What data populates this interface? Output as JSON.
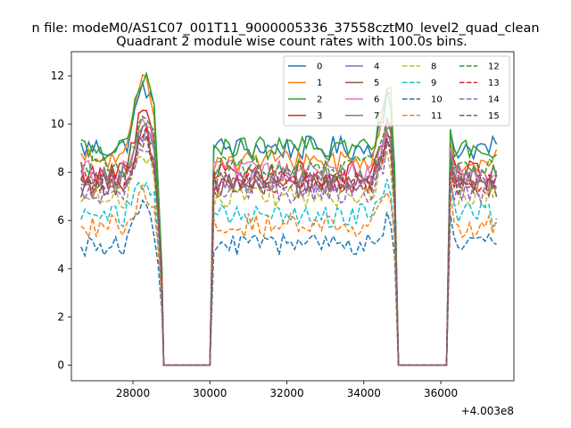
{
  "chart_data": {
    "type": "line",
    "suptitle": "n file: modeM0/AS1C07_001T11_9000005336_37558cztM0_level2_quad_clean",
    "title": "Quadrant 2 module wise count rates with 100.0s bins.",
    "xlabel": "",
    "ylabel": "",
    "x_offset_label": "+4.003e8",
    "x_offset": 400300000,
    "xlim": [
      26400,
      37900
    ],
    "ylim": [
      -0.65,
      13.0
    ],
    "x_ticks": [
      28000,
      30000,
      32000,
      34000,
      36000
    ],
    "x_tick_labels": [
      "28000",
      "30000",
      "32000",
      "34000",
      "36000"
    ],
    "y_ticks": [
      0,
      2,
      4,
      6,
      8,
      10,
      12
    ],
    "y_tick_labels": [
      "0",
      "2",
      "4",
      "6",
      "8",
      "10",
      "12"
    ],
    "grid": false,
    "legend_position": "top-right",
    "legend_columns": 4,
    "bin_seconds": 100,
    "segments": [
      {
        "x_start": 26650,
        "x_end": 28750,
        "drop_to": 28800
      },
      {
        "rise_from": 30000,
        "x_start": 30100,
        "x_end": 34850,
        "drop_to": 34900
      },
      {
        "rise_from": 36150,
        "x_start": 36250,
        "x_end": 37450
      }
    ],
    "gap_ranges": [
      [
        28800,
        30000
      ],
      [
        34900,
        36150
      ]
    ],
    "gap_value": 0,
    "series": [
      {
        "name": "0",
        "color": "#1f77b4",
        "dash": "solid",
        "level": 9.0,
        "peak1": 11.8,
        "peak2": 11.3
      },
      {
        "name": "1",
        "color": "#ff7f0e",
        "dash": "solid",
        "level": 8.5,
        "peak1": 12.4,
        "peak2": 11.5
      },
      {
        "name": "2",
        "color": "#2ca02c",
        "dash": "solid",
        "level": 9.0,
        "peak1": 12.1,
        "peak2": 11.4
      },
      {
        "name": "3",
        "color": "#d62728",
        "dash": "solid",
        "level": 8.0,
        "peak1": 11.2,
        "peak2": 10.2
      },
      {
        "name": "4",
        "color": "#9467bd",
        "dash": "solid",
        "level": 7.6,
        "peak1": 10.0,
        "peak2": 9.6
      },
      {
        "name": "5",
        "color": "#8c564b",
        "dash": "solid",
        "level": 7.4,
        "peak1": 9.8,
        "peak2": 9.2
      },
      {
        "name": "6",
        "color": "#e377c2",
        "dash": "solid",
        "level": 8.0,
        "peak1": 10.3,
        "peak2": 9.9
      },
      {
        "name": "7",
        "color": "#7f7f7f",
        "dash": "solid",
        "level": 7.8,
        "peak1": 10.1,
        "peak2": 9.7
      },
      {
        "name": "8",
        "color": "#bcbd22",
        "dash": "dashed",
        "level": 7.0,
        "peak1": 9.0,
        "peak2": 8.7
      },
      {
        "name": "9",
        "color": "#17becf",
        "dash": "dashed",
        "level": 6.2,
        "peak1": 7.8,
        "peak2": 7.5
      },
      {
        "name": "10",
        "color": "#1f77b4",
        "dash": "dashed",
        "level": 5.0,
        "peak1": 6.5,
        "peak2": 6.1
      },
      {
        "name": "11",
        "color": "#ff7f0e",
        "dash": "dashed",
        "level": 5.8,
        "peak1": 7.3,
        "peak2": 6.9
      },
      {
        "name": "12",
        "color": "#2ca02c",
        "dash": "dashed",
        "level": 8.2,
        "peak1": 10.4,
        "peak2": 10.0
      },
      {
        "name": "13",
        "color": "#d62728",
        "dash": "dashed",
        "level": 7.6,
        "peak1": 9.7,
        "peak2": 9.3
      },
      {
        "name": "14",
        "color": "#9467bd",
        "dash": "dashed",
        "level": 7.2,
        "peak1": 9.3,
        "peak2": 9.0
      },
      {
        "name": "15",
        "color": "#8c564b",
        "dash": "dashed",
        "level": 7.5,
        "peak1": 9.6,
        "peak2": 9.2
      }
    ]
  }
}
